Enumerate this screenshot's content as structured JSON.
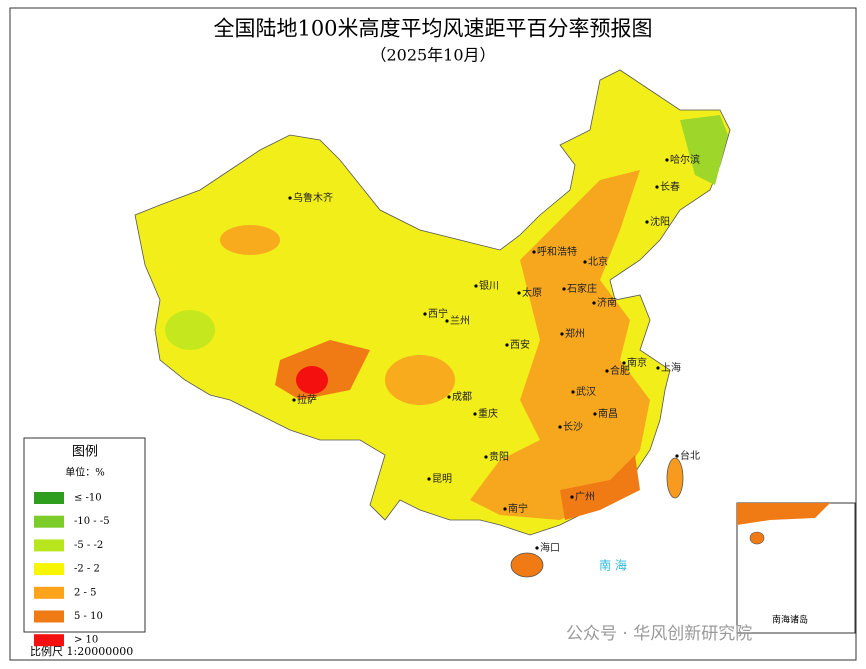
{
  "title": "全国陆地100米高度平均风速距平百分率预报图",
  "subtitle": "（2025年10月）",
  "legend": {
    "title": "图例",
    "unit": "单位：%",
    "items": [
      {
        "label": "≤ -10",
        "color": "#2f9e1f"
      },
      {
        "label": "-10 - -5",
        "color": "#7ccd2a"
      },
      {
        "label": "-5 - -2",
        "color": "#b8e61e"
      },
      {
        "label": "-2 - 2",
        "color": "#f7f500"
      },
      {
        "label": "2 - 5",
        "color": "#ffa31a"
      },
      {
        "label": "5 - 10",
        "color": "#f07a14"
      },
      {
        "label": "> 10",
        "color": "#f51010"
      }
    ]
  },
  "cities": [
    "乌鲁木齐",
    "哈尔滨",
    "长春",
    "沈阳",
    "呼和浩特",
    "北京",
    "石家庄",
    "太原",
    "银川",
    "济南",
    "西宁",
    "兰州",
    "郑州",
    "西安",
    "南京",
    "合肥",
    "上海",
    "拉萨",
    "成都",
    "武汉",
    "重庆",
    "南昌",
    "长沙",
    "台北",
    "贵阳",
    "昆明",
    "南宁",
    "广州",
    "海口"
  ],
  "sea_label": "南 海",
  "inset_label": "南海诸岛",
  "scale": "比例尺 1:20000000",
  "watermark": "公众号 · 华风创新研究院"
}
